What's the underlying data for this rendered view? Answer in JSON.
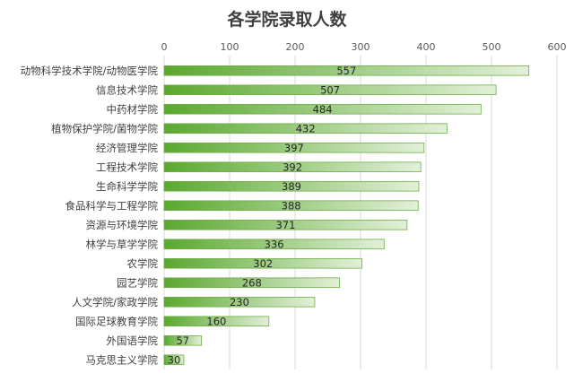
{
  "chart_data": {
    "type": "bar",
    "orientation": "horizontal",
    "title": "各学院录取人数",
    "xlabel": "",
    "ylabel": "",
    "xlim": [
      0,
      600
    ],
    "ticks": [
      0,
      100,
      200,
      300,
      400,
      500,
      600
    ],
    "axis_position": "top",
    "grid": true,
    "legend": "none",
    "bar_gradient": [
      "#5aa82e",
      "#e2f0d9"
    ],
    "categories": [
      "动物科学技术学院/动物医学院",
      "信息技术学院",
      "中药材学院",
      "植物保护学院/菌物学院",
      "经济管理学院",
      "工程技术学院",
      "生命科学学院",
      "食品科学与工程学院",
      "资源与环境学院",
      "林学与草学学院",
      "农学院",
      "园艺学院",
      "人文学院/家政学院",
      "国际足球教育学院",
      "外国语学院",
      "马克思主义学院"
    ],
    "values": [
      557,
      507,
      484,
      432,
      397,
      392,
      389,
      388,
      371,
      336,
      302,
      268,
      230,
      160,
      57,
      30
    ]
  }
}
